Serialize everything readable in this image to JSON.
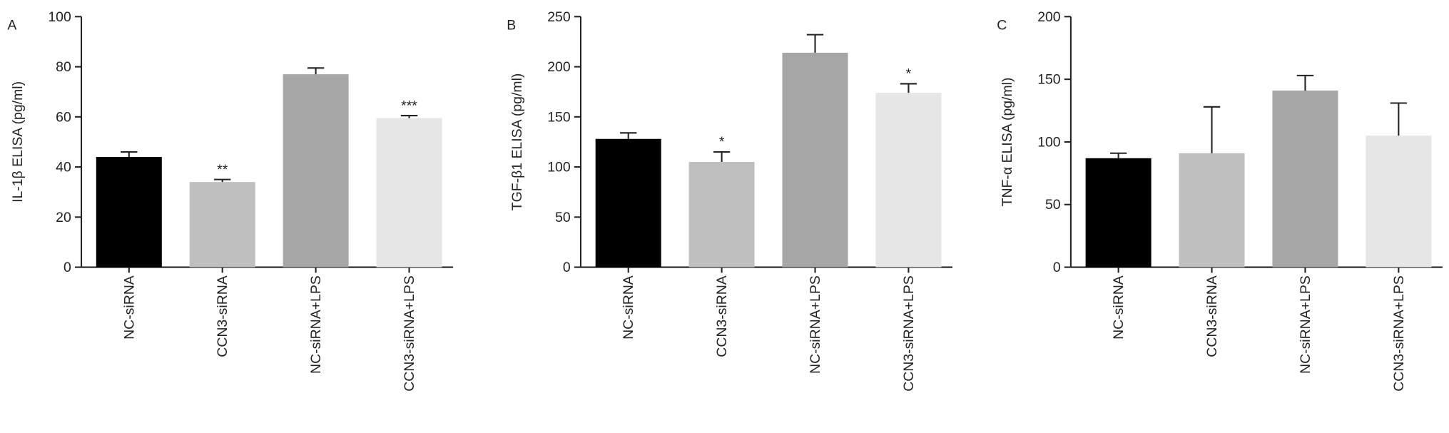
{
  "chart_data": [
    {
      "type": "bar",
      "panel": "A",
      "ylabel": "IL-1β ELISA (pg/ml)",
      "categories": [
        "NC-siRNA",
        "CCN3-siRNA",
        "NC-siRNA+LPS",
        "CCN3-siRNA+LPS"
      ],
      "values": [
        44,
        34,
        77,
        59.5
      ],
      "errors": [
        2,
        1,
        2.5,
        1
      ],
      "significance": [
        null,
        "**",
        null,
        "***"
      ],
      "colors": [
        "#000000",
        "#bfbfbf",
        "#a6a6a6",
        "#e6e6e6"
      ],
      "ylim": [
        0,
        100
      ],
      "yticks": [
        0,
        20,
        40,
        60,
        80,
        100
      ]
    },
    {
      "type": "bar",
      "panel": "B",
      "ylabel": "TGF-β1  ELISA  (pg/ml)",
      "categories": [
        "NC-siRNA",
        "CCN3-siRNA",
        "NC-siRNA+LPS",
        "CCN3-siRNA+LPS"
      ],
      "values": [
        128,
        105,
        214,
        174
      ],
      "errors": [
        6,
        10,
        18,
        9
      ],
      "significance": [
        null,
        "*",
        null,
        "*"
      ],
      "colors": [
        "#000000",
        "#bfbfbf",
        "#a6a6a6",
        "#e6e6e6"
      ],
      "ylim": [
        0,
        250
      ],
      "yticks": [
        0,
        50,
        100,
        150,
        200,
        250
      ]
    },
    {
      "type": "bar",
      "panel": "C",
      "ylabel": "TNF-α ELISA  (pg/ml)",
      "categories": [
        "NC-siRNA",
        "CCN3-siRNA",
        "NC-siRNA+LPS",
        "CCN3-siRNA+LPS"
      ],
      "values": [
        87,
        91,
        141,
        105
      ],
      "errors": [
        4,
        37,
        12,
        26
      ],
      "colors": [
        "#000000",
        "#bfbfbf",
        "#a6a6a6",
        "#e6e6e6"
      ],
      "ylim": [
        0,
        200
      ],
      "yticks": [
        0,
        50,
        100,
        150,
        200
      ]
    }
  ]
}
